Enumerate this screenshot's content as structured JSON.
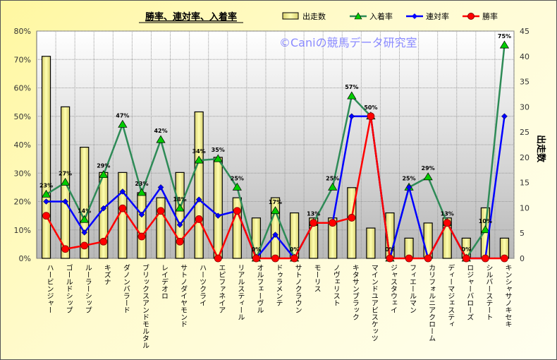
{
  "chart_data": {
    "type": "bar+line",
    "title": "勝率、連対率、入着率",
    "watermark": "©Caniの競馬データ研究室",
    "ylabel_left": "",
    "ylabel_right": "出走数",
    "ylim_left": [
      0,
      80
    ],
    "ylim_right": [
      0,
      45
    ],
    "left_ticks": [
      "0%",
      "10%",
      "20%",
      "30%",
      "40%",
      "50%",
      "60%",
      "70%",
      "80%"
    ],
    "right_ticks": [
      "0",
      "5",
      "10",
      "15",
      "20",
      "25",
      "30",
      "35",
      "40",
      "45"
    ],
    "grid": true,
    "legend_position": "top-right",
    "categories": [
      "ハービンジャー",
      "ゴールドシップ",
      "ルーラーシップ",
      "キズナ",
      "ダノンバラード",
      "ブリックスアンドモルタル",
      "レイデオロ",
      "サトノダイヤモンド",
      "ハーツクライ",
      "エピファネイア",
      "リアルスティール",
      "オルフェーヴル",
      "ドゥラメンテ",
      "サトノクラウン",
      "モーリス",
      "ノヴェリスト",
      "キタサンブラック",
      "マインドユアビスケッツ",
      "ジャスタウェイ",
      "フィエールマン",
      "カリフォルニアクローム",
      "ディーマジェスティ",
      "ロジャーバローズ",
      "シルバーステート",
      "キンシャサノキセキ"
    ],
    "series": [
      {
        "name": "出走数",
        "kind": "bar",
        "axis": "right",
        "color": "#f0f080",
        "values": [
          40,
          30,
          22,
          17,
          17,
          13,
          12,
          17,
          29,
          20,
          12,
          8,
          12,
          9,
          8,
          8,
          14,
          6,
          9,
          4,
          7,
          8,
          4,
          10,
          4
        ]
      },
      {
        "name": "入着率",
        "kind": "line",
        "axis": "left",
        "color": "#2e8b57",
        "marker": "triangle",
        "marker_color": "#00cc00",
        "values": [
          22.5,
          26.7,
          13.6,
          29.4,
          47.1,
          23.1,
          41.7,
          17.6,
          34.5,
          35,
          25,
          0,
          16.7,
          0,
          12.5,
          25,
          57.1,
          50,
          0,
          25,
          28.6,
          12.5,
          0,
          10,
          75
        ],
        "data_labels": [
          "23%",
          "27%",
          "14%",
          "29%",
          "47%",
          "23%",
          "42%",
          "18%",
          "34%",
          "35%",
          "25%",
          "0%",
          "17%",
          "0%",
          "13%",
          "25%",
          "57%",
          "50%",
          "0%",
          "25%",
          "29%",
          "13%",
          "0%",
          "10%",
          "75%"
        ]
      },
      {
        "name": "連対率",
        "kind": "line",
        "axis": "left",
        "color": "#0000ff",
        "marker": "diamond",
        "values": [
          20,
          20,
          9.1,
          17.6,
          23.5,
          15.4,
          25,
          11.8,
          20.7,
          15,
          16.7,
          0,
          8.3,
          0,
          12.5,
          12.5,
          50,
          50,
          0,
          25,
          0,
          12.5,
          0,
          0,
          50
        ]
      },
      {
        "name": "勝率",
        "kind": "line",
        "axis": "left",
        "color": "#ff0000",
        "marker": "circle",
        "values": [
          15,
          3.3,
          4.5,
          5.9,
          17.6,
          7.7,
          16.7,
          5.9,
          13.8,
          0,
          16.7,
          0,
          0,
          0,
          12.5,
          12.5,
          14.3,
          50,
          0,
          0,
          0,
          12.5,
          0,
          0,
          0
        ]
      }
    ]
  }
}
